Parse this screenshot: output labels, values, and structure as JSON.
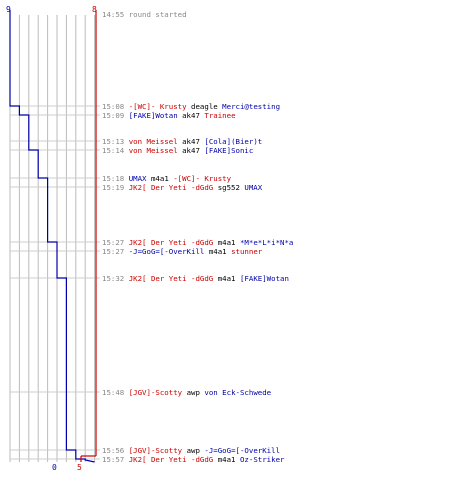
{
  "colors": {
    "blue_team": "#0000aa",
    "red_team": "#cc0000",
    "time": "#888888",
    "grid": "#bbbbbb",
    "connector": "#cccccc"
  },
  "header": {
    "time": "14:55",
    "text": "round started"
  },
  "chart_data": {
    "type": "line",
    "title": "",
    "xlabel": "",
    "ylabel": "",
    "start_count": 9,
    "series": [
      {
        "team": "blue",
        "start": 9,
        "values": [
          9,
          8,
          7,
          7,
          6,
          5,
          5,
          4,
          4,
          3,
          3,
          2,
          1,
          0,
          0
        ]
      },
      {
        "team": "red",
        "start": 8,
        "values": [
          8,
          8,
          8,
          7,
          7,
          7,
          6,
          6,
          5,
          5,
          5,
          5,
          5,
          5,
          5
        ]
      }
    ],
    "final": {
      "blue": 0,
      "red": 5
    }
  },
  "events": [
    {
      "time": "15:08",
      "killer": "-[WC]- Krusty",
      "killer_team": "red",
      "weapon": "deagle",
      "victim": "Merci@testing",
      "victim_team": "blue"
    },
    {
      "time": "15:09",
      "killer": "[FAKE]Wotan",
      "killer_team": "blue",
      "weapon": "ak47",
      "victim": "Trainee",
      "victim_team": "red"
    },
    {
      "time": "15:13",
      "killer": "von Meissel",
      "killer_team": "red",
      "weapon": "ak47",
      "victim": "[Cola](Bier)t",
      "victim_team": "blue"
    },
    {
      "time": "15:14",
      "killer": "von Meissel",
      "killer_team": "red",
      "weapon": "ak47",
      "victim": "[FAKE]Sonic",
      "victim_team": "blue"
    },
    {
      "time": "15:18",
      "killer": "UMAX",
      "killer_team": "blue",
      "weapon": "m4a1",
      "victim": "-[WC]- Krusty",
      "victim_team": "red"
    },
    {
      "time": "15:19",
      "killer": "JK2[ Der Yeti -dGdG",
      "killer_team": "red",
      "weapon": "sg552",
      "victim": "UMAX",
      "victim_team": "blue"
    },
    {
      "time": "15:27",
      "killer": "JK2[ Der Yeti -dGdG",
      "killer_team": "red",
      "weapon": "m4a1",
      "victim": "*M*e*L*i*N*a",
      "victim_team": "blue"
    },
    {
      "time": "15:27",
      "killer": "-J=GoG=[-OverKill",
      "killer_team": "blue",
      "weapon": "m4a1",
      "victim": "stunner",
      "victim_team": "red"
    },
    {
      "time": "15:32",
      "killer": "JK2[ Der Yeti -dGdG",
      "killer_team": "red",
      "weapon": "m4a1",
      "victim": "[FAKE]Wotan",
      "victim_team": "blue"
    },
    {
      "time": "15:48",
      "killer": "[JGV]-Scotty",
      "killer_team": "red",
      "weapon": "awp",
      "victim": "von Eck-Schwede",
      "victim_team": "blue"
    },
    {
      "time": "15:56",
      "killer": "[JGV]-Scotty",
      "killer_team": "red",
      "weapon": "awp",
      "victim": "-J=GoG=[-OverKill",
      "victim_team": "blue"
    },
    {
      "time": "15:57",
      "killer": "JK2[ Der Yeti -dGdG",
      "killer_team": "red",
      "weapon": "m4a1",
      "victim": "Oz-Striker",
      "victim_team": "blue"
    }
  ]
}
